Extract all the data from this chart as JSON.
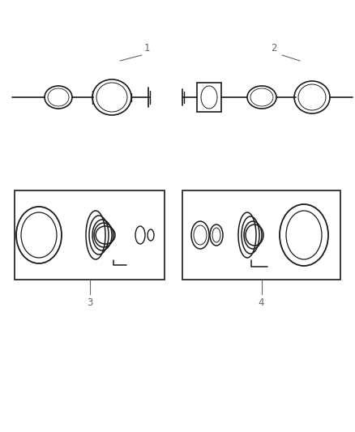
{
  "background_color": "#ffffff",
  "line_color": "#1a1a1a",
  "label_color": "#666666",
  "fig_width": 4.38,
  "fig_height": 5.33,
  "dpi": 100
}
